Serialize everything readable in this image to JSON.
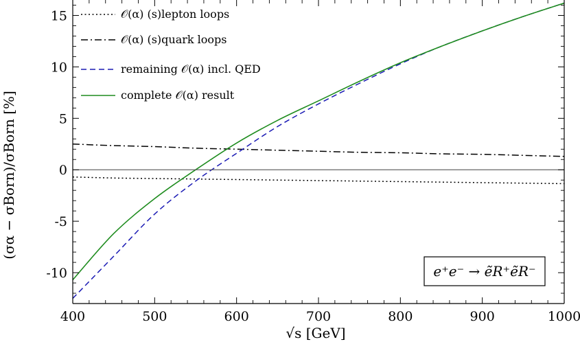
{
  "chart_data": {
    "type": "line",
    "title": "",
    "xlabel": "√s [GeV]",
    "ylabel": "(σα − σBorn)/σBorn [%]",
    "xlim": [
      400,
      1000
    ],
    "ylim": [
      -13,
      16.5
    ],
    "x_ticks": [
      "400",
      "500",
      "600",
      "700",
      "800",
      "900",
      "1000"
    ],
    "y_ticks": [
      "-10",
      "-5",
      "0",
      "5",
      "10",
      "15"
    ],
    "x_tick_values": [
      400,
      500,
      600,
      700,
      800,
      900,
      1000
    ],
    "y_tick_values": [
      -10,
      -5,
      0,
      5,
      10,
      15
    ],
    "annotation": "e⁺e⁻ → ẽR⁺ẽR⁻",
    "legend_position": "top-left",
    "grid": false,
    "x": [
      400,
      450,
      500,
      550,
      600,
      650,
      700,
      750,
      800,
      850,
      900,
      950,
      1000
    ],
    "series": [
      {
        "name": "𝒪(α) (s)lepton loops",
        "style": "dotted",
        "color": "#000000",
        "values": [
          -0.7,
          -0.8,
          -0.85,
          -0.9,
          -0.95,
          -1.0,
          -1.05,
          -1.1,
          -1.15,
          -1.2,
          -1.25,
          -1.3,
          -1.35
        ]
      },
      {
        "name": "𝒪(α) (s)quark loops",
        "style": "dashdot",
        "color": "#000000",
        "values": [
          2.5,
          2.35,
          2.25,
          2.1,
          2.0,
          1.9,
          1.8,
          1.7,
          1.65,
          1.55,
          1.5,
          1.4,
          1.3
        ]
      },
      {
        "name": "remaining 𝒪(α) incl. QED",
        "style": "dashed",
        "color": "#1a1ab4",
        "values": [
          -12.5,
          -8.4,
          -4.3,
          -1.1,
          1.6,
          4.2,
          6.4,
          8.4,
          10.3,
          12.0,
          13.5,
          14.9,
          16.2
        ]
      },
      {
        "name": "complete 𝒪(α) result",
        "style": "solid",
        "color": "#1e8c1e",
        "values": [
          -10.7,
          -6.2,
          -2.8,
          0.0,
          2.6,
          4.8,
          6.7,
          8.6,
          10.4,
          12.0,
          13.5,
          14.9,
          16.2
        ]
      }
    ]
  }
}
